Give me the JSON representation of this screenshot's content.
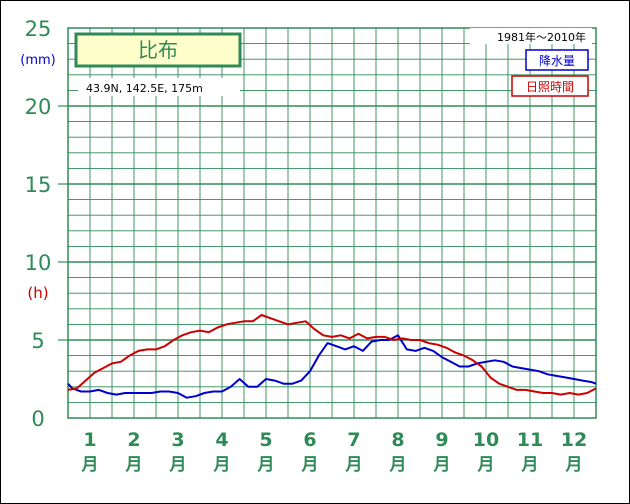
{
  "station": {
    "name": "比布",
    "location": "43.9N,  142.5E,  175m",
    "period": "1981年〜2010年"
  },
  "colors": {
    "grid": "#2e8b57",
    "precip": "#0000cc",
    "sunshine": "#cc0000",
    "title_box_fill": "#ffffcc"
  },
  "chart_data": {
    "type": "line",
    "xlim": [
      1,
      13
    ],
    "ylim": [
      0,
      25
    ],
    "yticks": [
      "0",
      "5",
      "10",
      "15",
      "20",
      "25"
    ],
    "y_unit_precip": "(mm)",
    "y_unit_sunshine": "(h)",
    "months": [
      "1",
      "2",
      "3",
      "4",
      "5",
      "6",
      "7",
      "8",
      "9",
      "10",
      "11",
      "12"
    ],
    "month_suffix": "月",
    "grid": true,
    "legend_position": "top-right",
    "series": [
      {
        "name": "降水量",
        "x": [
          1.0,
          1.1,
          1.3,
          1.5,
          1.7,
          1.9,
          2.1,
          2.3,
          2.5,
          2.7,
          2.9,
          3.1,
          3.3,
          3.5,
          3.7,
          3.9,
          4.1,
          4.3,
          4.5,
          4.7,
          4.9,
          5.1,
          5.3,
          5.5,
          5.7,
          5.9,
          6.1,
          6.3,
          6.5,
          6.7,
          6.9,
          7.1,
          7.3,
          7.5,
          7.7,
          7.9,
          8.1,
          8.3,
          8.5,
          8.7,
          8.9,
          9.1,
          9.3,
          9.5,
          9.7,
          9.9,
          10.1,
          10.3,
          10.5,
          10.7,
          10.9,
          11.1,
          11.3,
          11.5,
          11.7,
          11.9,
          12.1,
          12.3,
          12.5,
          12.7,
          12.9,
          13.0
        ],
        "values": [
          2.2,
          1.9,
          1.7,
          1.7,
          1.8,
          1.6,
          1.5,
          1.6,
          1.6,
          1.6,
          1.6,
          1.7,
          1.7,
          1.6,
          1.3,
          1.4,
          1.6,
          1.7,
          1.7,
          2.0,
          2.5,
          2.0,
          2.0,
          2.5,
          2.4,
          2.2,
          2.2,
          2.4,
          3.0,
          4.0,
          4.8,
          4.6,
          4.4,
          4.6,
          4.3,
          4.9,
          5.0,
          5.0,
          5.3,
          4.4,
          4.3,
          4.5,
          4.3,
          3.9,
          3.6,
          3.3,
          3.3,
          3.5,
          3.6,
          3.7,
          3.6,
          3.3,
          3.2,
          3.1,
          3.0,
          2.8,
          2.7,
          2.6,
          2.5,
          2.4,
          2.3,
          2.2
        ]
      },
      {
        "name": "日照時間",
        "x": [
          1.0,
          1.2,
          1.4,
          1.6,
          1.8,
          2.0,
          2.2,
          2.4,
          2.6,
          2.8,
          3.0,
          3.2,
          3.4,
          3.6,
          3.8,
          4.0,
          4.2,
          4.4,
          4.6,
          4.8,
          5.0,
          5.2,
          5.4,
          5.6,
          5.8,
          6.0,
          6.2,
          6.4,
          6.6,
          6.8,
          7.0,
          7.2,
          7.4,
          7.6,
          7.8,
          8.0,
          8.2,
          8.4,
          8.6,
          8.8,
          9.0,
          9.2,
          9.4,
          9.6,
          9.8,
          10.0,
          10.2,
          10.4,
          10.6,
          10.8,
          11.0,
          11.2,
          11.4,
          11.6,
          11.8,
          12.0,
          12.2,
          12.4,
          12.6,
          12.8,
          13.0
        ],
        "values": [
          1.8,
          1.9,
          2.4,
          2.9,
          3.2,
          3.5,
          3.6,
          4.0,
          4.3,
          4.4,
          4.4,
          4.6,
          5.0,
          5.3,
          5.5,
          5.6,
          5.5,
          5.8,
          6.0,
          6.1,
          6.2,
          6.2,
          6.6,
          6.4,
          6.2,
          6.0,
          6.1,
          6.2,
          5.7,
          5.3,
          5.2,
          5.3,
          5.1,
          5.4,
          5.1,
          5.2,
          5.2,
          5.0,
          5.1,
          5.0,
          5.0,
          4.8,
          4.7,
          4.5,
          4.2,
          4.0,
          3.7,
          3.3,
          2.6,
          2.2,
          2.0,
          1.8,
          1.8,
          1.7,
          1.6,
          1.6,
          1.5,
          1.6,
          1.5,
          1.6,
          1.9
        ]
      }
    ]
  }
}
